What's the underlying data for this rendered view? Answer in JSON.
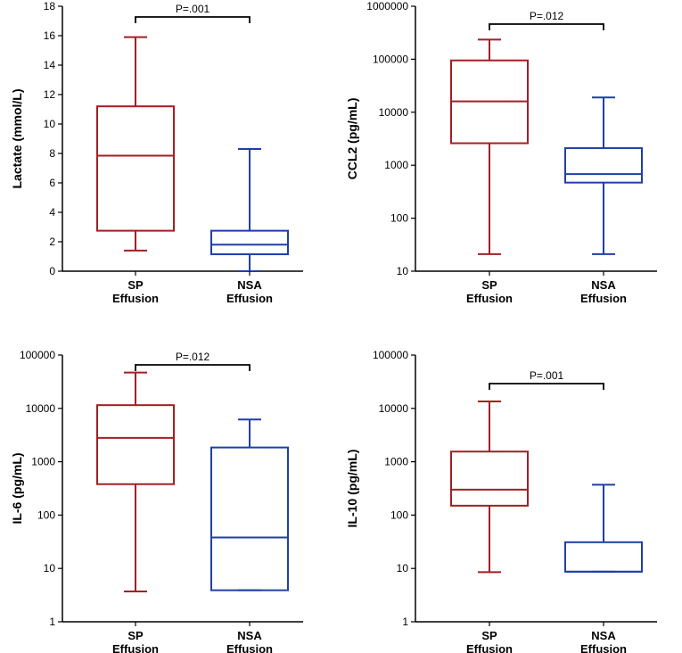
{
  "colors": {
    "sp": "#a31f24",
    "nsa": "#1f3fa8",
    "axis": "#000000"
  },
  "chart_data": [
    {
      "type": "box",
      "id": "lactate",
      "scale": "linear",
      "ylabel": "Lactate (mmol/L)",
      "ylim": [
        0,
        18
      ],
      "ticks": [
        0,
        2,
        4,
        6,
        8,
        10,
        12,
        14,
        16,
        18
      ],
      "tick_labels": [
        "0",
        "2",
        "4",
        "6",
        "8",
        "10",
        "12",
        "14",
        "16",
        "18"
      ],
      "categories": [
        {
          "line1": "SP",
          "line2": "Effusion",
          "color": "sp",
          "min": 1.4,
          "q1": 2.75,
          "median": 7.85,
          "q3": 11.2,
          "max": 15.9
        },
        {
          "line1": "NSA",
          "line2": "Effusion",
          "color": "nsa",
          "min": 0.0,
          "q1": 1.15,
          "median": 1.8,
          "q3": 2.75,
          "max": 8.3
        }
      ],
      "pvalue": "P=.001"
    },
    {
      "type": "box",
      "id": "ccl2",
      "scale": "log",
      "ylabel": "CCL2 (pg/mL)",
      "ylim": [
        10,
        1000000
      ],
      "ticks": [
        10,
        100,
        1000,
        10000,
        100000,
        1000000
      ],
      "tick_labels": [
        "10",
        "100",
        "1000",
        "10000",
        "100000",
        "1000000"
      ],
      "categories": [
        {
          "line1": "SP",
          "line2": "Effusion",
          "color": "sp",
          "min": 21,
          "q1": 2600,
          "median": 16000,
          "q3": 95000,
          "max": 235000
        },
        {
          "line1": "NSA",
          "line2": "Effusion",
          "color": "nsa",
          "min": 21,
          "q1": 470,
          "median": 680,
          "q3": 2100,
          "max": 19000
        }
      ],
      "pvalue": "P=.012"
    },
    {
      "type": "box",
      "id": "il6",
      "scale": "log",
      "ylabel": "IL-6 (pg/mL)",
      "ylim": [
        1,
        100000
      ],
      "ticks": [
        1,
        10,
        100,
        1000,
        10000,
        100000
      ],
      "tick_labels": [
        "1",
        "10",
        "100",
        "1000",
        "10000",
        "100000"
      ],
      "categories": [
        {
          "line1": "SP",
          "line2": "Effusion",
          "color": "sp",
          "min": 3.7,
          "q1": 380,
          "median": 2800,
          "q3": 11500,
          "max": 47000
        },
        {
          "line1": "NSA",
          "line2": "Effusion",
          "color": "nsa",
          "min": 3.9,
          "q1": 3.9,
          "median": 38,
          "q3": 1850,
          "max": 6200
        }
      ],
      "pvalue": "P=.012"
    },
    {
      "type": "box",
      "id": "il10",
      "scale": "log",
      "ylabel": "IL-10 (pg/mL)",
      "ylim": [
        1,
        100000
      ],
      "ticks": [
        1,
        10,
        100,
        1000,
        10000,
        100000
      ],
      "tick_labels": [
        "1",
        "10",
        "100",
        "1000",
        "10000",
        "100000"
      ],
      "categories": [
        {
          "line1": "SP",
          "line2": "Effusion",
          "color": "sp",
          "min": 8.5,
          "q1": 150,
          "median": 300,
          "q3": 1550,
          "max": 13500
        },
        {
          "line1": "NSA",
          "line2": "Effusion",
          "color": "nsa",
          "min": 8.7,
          "q1": 8.7,
          "median": 8.7,
          "q3": 31,
          "max": 370
        }
      ],
      "pvalue": "P=.001"
    }
  ]
}
